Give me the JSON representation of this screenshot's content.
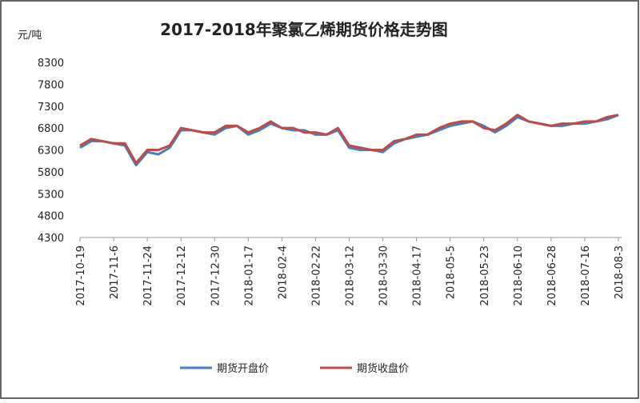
{
  "chart_data": {
    "type": "line",
    "title": "2017-2018年聚氯乙烯期货价格走势图",
    "y_label": "元/吨",
    "x": [
      "2017-10-19",
      "2017-10-25",
      "2017-10-31",
      "2017-11-6",
      "2017-11-12",
      "2017-11-18",
      "2017-11-24",
      "2017-11-30",
      "2017-12-6",
      "2017-12-12",
      "2017-12-18",
      "2017-12-24",
      "2017-12-30",
      "2018-01-05",
      "2018-01-11",
      "2018-01-17",
      "2018-01-23",
      "2018-01-29",
      "2018-02-04",
      "2018-02-10",
      "2018-02-16",
      "2018-02-22",
      "2018-02-28",
      "2018-03-06",
      "2018-03-12",
      "2018-03-18",
      "2018-03-24",
      "2018-03-30",
      "2018-04-05",
      "2018-04-11",
      "2018-04-17",
      "2018-04-23",
      "2018-04-29",
      "2018-05-05",
      "2018-05-11",
      "2018-05-17",
      "2018-05-23",
      "2018-05-29",
      "2018-06-04",
      "2018-06-10",
      "2018-06-16",
      "2018-06-22",
      "2018-06-28",
      "2018-07-04",
      "2018-07-10",
      "2018-07-16",
      "2018-07-22",
      "2018-07-28",
      "2018-08-03"
    ],
    "series": [
      {
        "name": "期货开盘价",
        "color": "#4a7ebb",
        "values": [
          6350,
          6500,
          6500,
          6450,
          6400,
          5950,
          6250,
          6200,
          6350,
          6750,
          6750,
          6700,
          6650,
          6800,
          6850,
          6650,
          6750,
          6900,
          6800,
          6750,
          6750,
          6650,
          6650,
          6750,
          6350,
          6300,
          6300,
          6250,
          6450,
          6550,
          6600,
          6650,
          6750,
          6850,
          6900,
          6950,
          6850,
          6700,
          6850,
          7050,
          6950,
          6900,
          6850,
          6850,
          6900,
          6900,
          6950,
          7000,
          7100
        ]
      },
      {
        "name": "期货收盘价",
        "color": "#be4b48",
        "values": [
          6400,
          6550,
          6500,
          6450,
          6450,
          6000,
          6300,
          6300,
          6400,
          6800,
          6750,
          6700,
          6700,
          6850,
          6850,
          6700,
          6800,
          6950,
          6800,
          6800,
          6700,
          6700,
          6650,
          6800,
          6400,
          6350,
          6300,
          6300,
          6500,
          6550,
          6650,
          6650,
          6800,
          6900,
          6950,
          6950,
          6800,
          6750,
          6900,
          7100,
          6950,
          6900,
          6850,
          6900,
          6900,
          6950,
          6950,
          7050,
          7100
        ]
      }
    ],
    "xlim": [
      "2017-10-19",
      "2018-08-03"
    ],
    "xticks": [
      "2017-10-19",
      "2017-11-6",
      "2017-11-24",
      "2017-12-12",
      "2017-12-30",
      "2018-01-17",
      "2018-02-4",
      "2018-02-22",
      "2018-03-12",
      "2018-03-30",
      "2018-04-17",
      "2018-05-5",
      "2018-05-23",
      "2018-06-10",
      "2018-06-28",
      "2018-07-16",
      "2018-08-3"
    ],
    "ylim": [
      4300,
      8300
    ],
    "yticks": [
      4300,
      4800,
      5300,
      5800,
      6300,
      6800,
      7300,
      7800,
      8300
    ],
    "grid": false,
    "legend": "bottom"
  }
}
